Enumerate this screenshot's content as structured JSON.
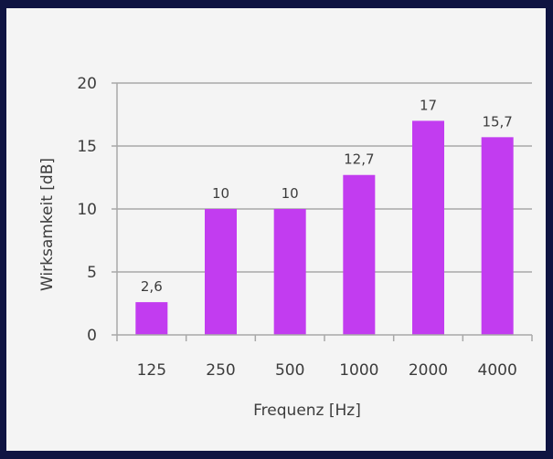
{
  "chart_data": {
    "type": "bar",
    "categories": [
      "125",
      "250",
      "500",
      "1000",
      "2000",
      "4000"
    ],
    "values": [
      2.6,
      10,
      10,
      12.7,
      17,
      15.7
    ],
    "value_labels": [
      "2,6",
      "10",
      "10",
      "12,7",
      "17",
      "15,7"
    ],
    "xlabel": "Frequenz [Hz]",
    "ylabel": "Wirksamkeit [dB]",
    "ylim": [
      0,
      20
    ],
    "yticks": [
      "0",
      "5",
      "10",
      "15",
      "20"
    ],
    "grid": true,
    "bar_color": "#c23cf0",
    "grid_color": "#a8a8a8"
  },
  "colors": {
    "frame": "#0f1442",
    "panel": "#f4f4f4",
    "text": "#3c3c3c"
  }
}
